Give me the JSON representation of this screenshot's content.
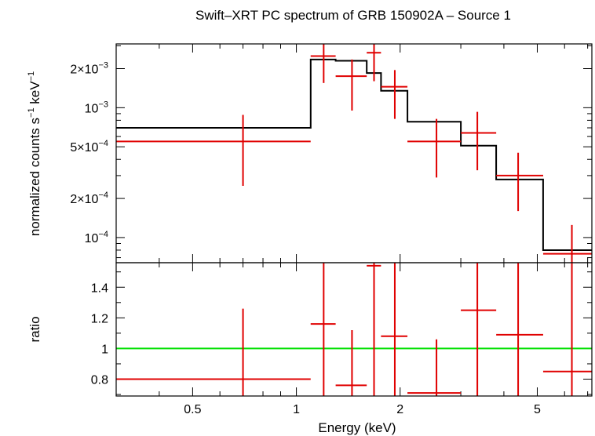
{
  "title": "Swift–XRT PC spectrum of GRB 150902A – Source 1",
  "colors": {
    "data": "#e00000",
    "model": "#000000",
    "unity": "#00e000",
    "frame": "#000000"
  },
  "chart_data": [
    {
      "type": "scatter",
      "panel": "spectrum",
      "xscale": "log",
      "yscale": "log",
      "xlim": [
        0.3,
        7.2
      ],
      "ylim": [
        6.4e-05,
        0.0031
      ],
      "ylabel_main": "normalized counts s",
      "ylabel_exp1": "−1",
      "ylabel_mid": " keV",
      "ylabel_exp2": "−1",
      "yticks": [
        {
          "v": 0.0001,
          "m": "10",
          "e": "−4"
        },
        {
          "v": 0.0002,
          "m": "2×10",
          "e": "−4"
        },
        {
          "v": 0.0005,
          "m": "5×10",
          "e": "−4"
        },
        {
          "v": 0.001,
          "m": "10",
          "e": "−3"
        },
        {
          "v": 0.002,
          "m": "2×10",
          "e": "−3"
        }
      ],
      "series": [
        {
          "kind": "data",
          "points": [
            {
              "x": 0.7,
              "xlo": 0.3,
              "xhi": 1.1,
              "y": 0.00055,
              "ylo": 0.00025,
              "yhi": 0.00088
            },
            {
              "x": 1.2,
              "xlo": 1.1,
              "xhi": 1.3,
              "y": 0.0025,
              "ylo": 0.00155,
              "yhi": 0.0031
            },
            {
              "x": 1.45,
              "xlo": 1.3,
              "xhi": 1.6,
              "y": 0.00175,
              "ylo": 0.00095,
              "yhi": 0.00235
            },
            {
              "x": 1.68,
              "xlo": 1.6,
              "xhi": 1.76,
              "y": 0.00265,
              "ylo": 0.0016,
              "yhi": 0.0031
            },
            {
              "x": 1.93,
              "xlo": 1.76,
              "xhi": 2.1,
              "y": 0.00145,
              "ylo": 0.00082,
              "yhi": 0.00195
            },
            {
              "x": 2.55,
              "xlo": 2.1,
              "xhi": 3.0,
              "y": 0.00055,
              "ylo": 0.00029,
              "yhi": 0.00082
            },
            {
              "x": 3.35,
              "xlo": 3.0,
              "xhi": 3.8,
              "y": 0.00064,
              "ylo": 0.00033,
              "yhi": 0.00093
            },
            {
              "x": 4.4,
              "xlo": 3.8,
              "xhi": 5.2,
              "y": 0.0003,
              "ylo": 0.00016,
              "yhi": 0.00045
            },
            {
              "x": 6.3,
              "xlo": 5.2,
              "xhi": 7.2,
              "y": 7.5e-05,
              "ylo": 6.4e-05,
              "yhi": 0.000125
            }
          ]
        },
        {
          "kind": "model",
          "steps": [
            {
              "x0": 0.3,
              "x1": 1.1,
              "y": 0.0007
            },
            {
              "x0": 1.1,
              "x1": 1.3,
              "y": 0.00235
            },
            {
              "x0": 1.3,
              "x1": 1.6,
              "y": 0.0023
            },
            {
              "x0": 1.6,
              "x1": 1.76,
              "y": 0.00185
            },
            {
              "x0": 1.76,
              "x1": 2.1,
              "y": 0.00135
            },
            {
              "x0": 2.1,
              "x1": 3.0,
              "y": 0.00078
            },
            {
              "x0": 3.0,
              "x1": 3.8,
              "y": 0.00051
            },
            {
              "x0": 3.8,
              "x1": 5.2,
              "y": 0.00028
            },
            {
              "x0": 5.2,
              "x1": 7.2,
              "y": 8e-05
            }
          ]
        }
      ]
    },
    {
      "type": "scatter",
      "panel": "ratio",
      "xscale": "log",
      "yscale": "linear",
      "xlim": [
        0.3,
        7.2
      ],
      "ylim": [
        0.69,
        1.56
      ],
      "xlabel": "Energy (keV)",
      "ylabel": "ratio",
      "xticks": [
        {
          "v": 0.5,
          "label": "0.5"
        },
        {
          "v": 1,
          "label": "1"
        },
        {
          "v": 2,
          "label": "2"
        },
        {
          "v": 5,
          "label": "5"
        }
      ],
      "yticks": [
        {
          "v": 0.8,
          "label": "0.8"
        },
        {
          "v": 1.0,
          "label": "1"
        },
        {
          "v": 1.2,
          "label": "1.2"
        },
        {
          "v": 1.4,
          "label": "1.4"
        }
      ],
      "reference_line": 1.0,
      "points": [
        {
          "x": 0.7,
          "xlo": 0.3,
          "xhi": 1.1,
          "y": 0.8,
          "ylo": 0.69,
          "yhi": 1.26
        },
        {
          "x": 1.2,
          "xlo": 1.1,
          "xhi": 1.3,
          "y": 1.16,
          "ylo": 0.69,
          "yhi": 1.56
        },
        {
          "x": 1.45,
          "xlo": 1.3,
          "xhi": 1.6,
          "y": 0.76,
          "ylo": 0.69,
          "yhi": 1.12
        },
        {
          "x": 1.68,
          "xlo": 1.6,
          "xhi": 1.76,
          "y": 1.54,
          "ylo": 0.69,
          "yhi": 1.56
        },
        {
          "x": 1.93,
          "xlo": 1.76,
          "xhi": 2.1,
          "y": 1.08,
          "ylo": 0.69,
          "yhi": 1.56
        },
        {
          "x": 2.55,
          "xlo": 2.1,
          "xhi": 3.0,
          "y": 0.71,
          "ylo": 0.69,
          "yhi": 1.06
        },
        {
          "x": 3.35,
          "xlo": 3.0,
          "xhi": 3.8,
          "y": 1.25,
          "ylo": 0.69,
          "yhi": 1.56
        },
        {
          "x": 4.4,
          "xlo": 3.8,
          "xhi": 5.2,
          "y": 1.09,
          "ylo": 0.69,
          "yhi": 1.56
        },
        {
          "x": 6.3,
          "xlo": 5.2,
          "xhi": 7.2,
          "y": 0.85,
          "ylo": 0.69,
          "yhi": 1.56
        }
      ]
    }
  ]
}
